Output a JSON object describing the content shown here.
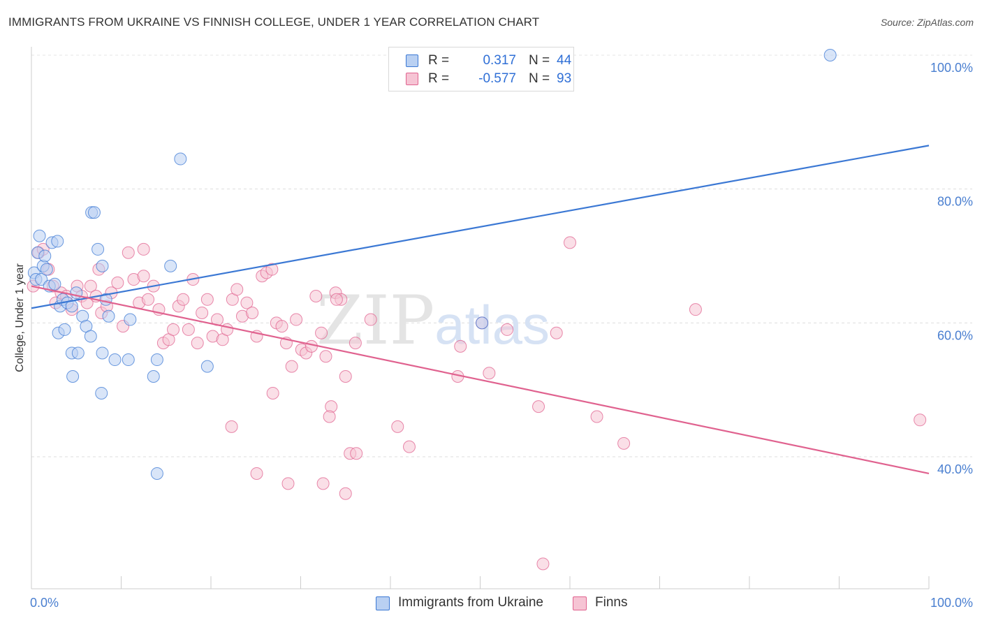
{
  "title": "IMMIGRANTS FROM UKRAINE VS FINNISH COLLEGE, UNDER 1 YEAR CORRELATION CHART",
  "source": "Source: ZipAtlas.com",
  "watermark": "ZIPatlas",
  "colors": {
    "blue": "#3b78d4",
    "blue_fill": "#b9d0f2",
    "pink": "#e0628f",
    "pink_fill": "#f6c4d4",
    "accent_text": "#2f6fd6"
  },
  "legend": {
    "rows": [
      {
        "r_label": "R =",
        "r_value": "0.317",
        "n_label": "N =",
        "n_value": "44"
      },
      {
        "r_label": "R =",
        "r_value": "-0.577",
        "n_label": "N =",
        "n_value": "93"
      }
    ]
  },
  "bottom_legend": [
    "Immigrants from Ukraine",
    "Finns"
  ],
  "chart_data": {
    "type": "scatter",
    "title": "IMMIGRANTS FROM UKRAINE VS FINNISH COLLEGE, UNDER 1 YEAR CORRELATION CHART",
    "xlabel": "",
    "ylabel": "College, Under 1 year",
    "xlim": [
      0,
      100
    ],
    "ylim": [
      20,
      102
    ],
    "x_tick_labels": [
      "0.0%",
      "100.0%"
    ],
    "y_ticks": [
      40,
      60,
      80,
      100
    ],
    "y_tick_labels": [
      "40.0%",
      "60.0%",
      "80.0%",
      "100.0%"
    ],
    "grid": true,
    "series": [
      {
        "name": "Immigrants from Ukraine",
        "r": 0.317,
        "n": 44,
        "trend": {
          "x": [
            0,
            100
          ],
          "y": [
            62.2,
            86.5
          ]
        },
        "points": [
          [
            0.3,
            67.5
          ],
          [
            0.5,
            66.5
          ],
          [
            0.7,
            70.5
          ],
          [
            0.9,
            73.0
          ],
          [
            1.1,
            66.5
          ],
          [
            1.3,
            68.5
          ],
          [
            1.5,
            70.0
          ],
          [
            1.7,
            68.0
          ],
          [
            2.0,
            65.5
          ],
          [
            2.3,
            72.0
          ],
          [
            2.6,
            65.8
          ],
          [
            2.9,
            72.2
          ],
          [
            3.2,
            62.5
          ],
          [
            3.5,
            63.5
          ],
          [
            4.0,
            63.0
          ],
          [
            4.5,
            62.5
          ],
          [
            5.0,
            64.5
          ],
          [
            5.7,
            61.0
          ],
          [
            6.1,
            59.5
          ],
          [
            6.7,
            76.5
          ],
          [
            7.0,
            76.5
          ],
          [
            7.4,
            71.0
          ],
          [
            7.9,
            68.5
          ],
          [
            8.3,
            63.5
          ],
          [
            8.6,
            61.0
          ],
          [
            3.0,
            58.5
          ],
          [
            3.7,
            59.0
          ],
          [
            4.5,
            55.5
          ],
          [
            5.2,
            55.5
          ],
          [
            4.6,
            52.0
          ],
          [
            6.6,
            58.0
          ],
          [
            7.9,
            55.5
          ],
          [
            7.8,
            49.5
          ],
          [
            9.3,
            54.5
          ],
          [
            10.8,
            54.5
          ],
          [
            11.0,
            60.5
          ],
          [
            13.6,
            52.0
          ],
          [
            14.0,
            54.5
          ],
          [
            15.5,
            68.5
          ],
          [
            16.6,
            84.5
          ],
          [
            19.6,
            53.5
          ],
          [
            14.0,
            37.5
          ],
          [
            50.2,
            60.0
          ],
          [
            89.0,
            100.0
          ]
        ]
      },
      {
        "name": "Finns",
        "r": -0.577,
        "n": 93,
        "trend": {
          "x": [
            0,
            100
          ],
          "y": [
            65.5,
            37.5
          ]
        },
        "points": [
          [
            0.2,
            65.5
          ],
          [
            0.8,
            70.5
          ],
          [
            1.3,
            71.0
          ],
          [
            1.9,
            68.0
          ],
          [
            2.4,
            65.5
          ],
          [
            2.7,
            63.0
          ],
          [
            3.3,
            64.5
          ],
          [
            3.9,
            64.0
          ],
          [
            4.5,
            62.0
          ],
          [
            5.1,
            65.5
          ],
          [
            5.6,
            64.0
          ],
          [
            6.2,
            63.0
          ],
          [
            6.6,
            65.5
          ],
          [
            7.2,
            64.0
          ],
          [
            7.8,
            61.5
          ],
          [
            8.4,
            62.5
          ],
          [
            8.9,
            64.5
          ],
          [
            9.6,
            66.0
          ],
          [
            10.2,
            59.5
          ],
          [
            10.8,
            70.5
          ],
          [
            11.4,
            66.5
          ],
          [
            12.0,
            63.0
          ],
          [
            12.5,
            67.0
          ],
          [
            13.0,
            63.5
          ],
          [
            13.6,
            65.5
          ],
          [
            14.2,
            62.0
          ],
          [
            14.7,
            57.0
          ],
          [
            15.3,
            57.5
          ],
          [
            15.8,
            59.0
          ],
          [
            16.4,
            62.5
          ],
          [
            16.9,
            63.5
          ],
          [
            17.5,
            59.0
          ],
          [
            18.0,
            66.5
          ],
          [
            18.5,
            57.0
          ],
          [
            19.0,
            61.5
          ],
          [
            19.6,
            63.5
          ],
          [
            20.2,
            58.0
          ],
          [
            20.7,
            60.5
          ],
          [
            21.3,
            57.5
          ],
          [
            21.8,
            59.0
          ],
          [
            22.4,
            63.5
          ],
          [
            22.9,
            65.0
          ],
          [
            23.5,
            61.0
          ],
          [
            24.0,
            63.0
          ],
          [
            24.6,
            61.5
          ],
          [
            25.1,
            58.0
          ],
          [
            25.7,
            67.0
          ],
          [
            26.2,
            67.5
          ],
          [
            26.8,
            68.0
          ],
          [
            27.3,
            60.0
          ],
          [
            27.9,
            59.5
          ],
          [
            28.4,
            57.0
          ],
          [
            29.0,
            53.5
          ],
          [
            29.5,
            60.5
          ],
          [
            30.1,
            56.0
          ],
          [
            30.6,
            55.5
          ],
          [
            31.2,
            56.5
          ],
          [
            31.7,
            64.0
          ],
          [
            32.3,
            58.5
          ],
          [
            32.8,
            55.0
          ],
          [
            33.4,
            47.5
          ],
          [
            33.9,
            64.5
          ],
          [
            34.5,
            63.5
          ],
          [
            35.0,
            52.0
          ],
          [
            36.1,
            57.0
          ],
          [
            37.8,
            60.5
          ],
          [
            42.1,
            41.5
          ],
          [
            47.8,
            56.5
          ],
          [
            40.8,
            44.5
          ],
          [
            25.1,
            37.5
          ],
          [
            32.5,
            36.0
          ],
          [
            28.6,
            36.0
          ],
          [
            26.9,
            49.5
          ],
          [
            22.3,
            44.5
          ],
          [
            33.2,
            46.0
          ],
          [
            35.0,
            34.5
          ],
          [
            35.5,
            40.5
          ],
          [
            36.2,
            40.5
          ],
          [
            47.5,
            52.0
          ],
          [
            50.2,
            60.0
          ],
          [
            51.0,
            52.5
          ],
          [
            53.0,
            59.0
          ],
          [
            56.5,
            47.5
          ],
          [
            57.0,
            24.0
          ],
          [
            58.5,
            58.5
          ],
          [
            60.0,
            72.0
          ],
          [
            63.0,
            46.0
          ],
          [
            66.0,
            42.0
          ],
          [
            74.0,
            62.0
          ],
          [
            99.0,
            45.5
          ],
          [
            34.0,
            63.5
          ],
          [
            12.5,
            71.0
          ],
          [
            7.5,
            68.0
          ]
        ]
      }
    ]
  }
}
